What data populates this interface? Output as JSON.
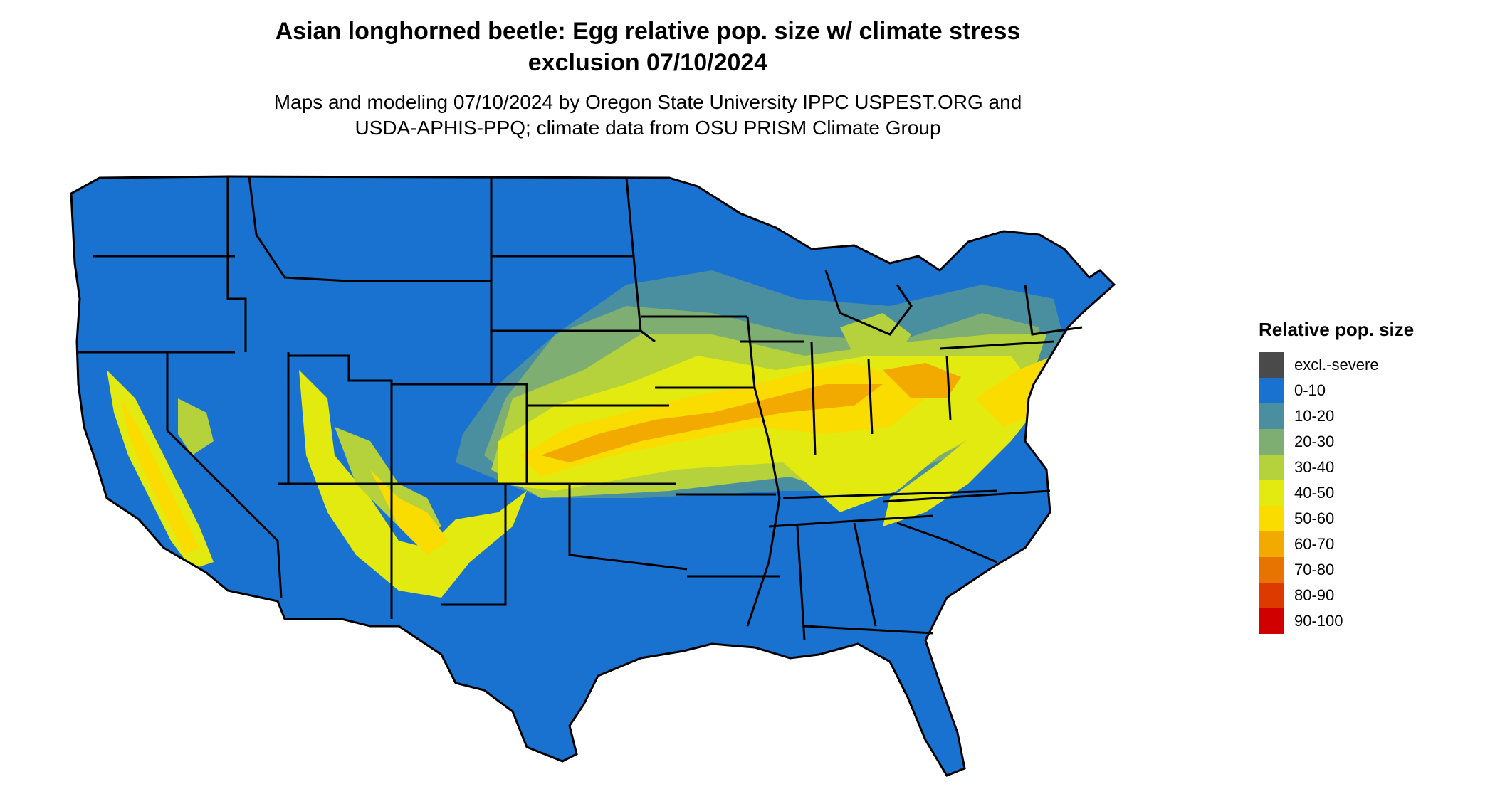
{
  "title_line1": "Asian longhorned beetle: Egg relative pop. size w/ climate stress",
  "title_line2": "exclusion 07/10/2024",
  "subtitle_line1": "Maps and modeling 07/10/2024 by Oregon State University IPPC USPEST.ORG and",
  "subtitle_line2": "USDA-APHIS-PPQ; climate data from OSU PRISM Climate Group",
  "legend": {
    "title": "Relative pop. size",
    "items": [
      {
        "label": "excl.-severe",
        "color": "#4a4a4a"
      },
      {
        "label": "0-10",
        "color": "#1a72d0"
      },
      {
        "label": "10-20",
        "color": "#4a8fa0"
      },
      {
        "label": "20-30",
        "color": "#7fae72"
      },
      {
        "label": "30-40",
        "color": "#b5d13c"
      },
      {
        "label": "40-50",
        "color": "#e2ea10"
      },
      {
        "label": "50-60",
        "color": "#fadc00"
      },
      {
        "label": "60-70",
        "color": "#f2a900"
      },
      {
        "label": "70-80",
        "color": "#e87400"
      },
      {
        "label": "80-90",
        "color": "#dd3a00"
      },
      {
        "label": "90-100",
        "color": "#d10000"
      }
    ]
  },
  "colors": {
    "base": "#1a72d0",
    "border": "#000000"
  }
}
